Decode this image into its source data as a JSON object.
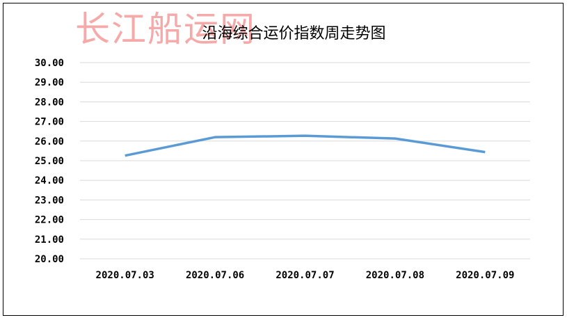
{
  "watermark": "长江船运网",
  "chart_data": {
    "type": "line",
    "title": "沿海综合运价指数周走势图",
    "categories": [
      "2020.07.03",
      "2020.07.06",
      "2020.07.07",
      "2020.07.08",
      "2020.07.09"
    ],
    "values": [
      25.26,
      26.2,
      26.27,
      26.13,
      25.44
    ],
    "ylim": [
      20,
      30
    ],
    "yticks": [
      "20.00",
      "21.00",
      "22.00",
      "23.00",
      "24.00",
      "25.00",
      "26.00",
      "27.00",
      "28.00",
      "29.00",
      "30.00"
    ],
    "grid": true,
    "legend": "none",
    "line_color": "#5b9bd5",
    "xlabel": "",
    "ylabel": ""
  }
}
